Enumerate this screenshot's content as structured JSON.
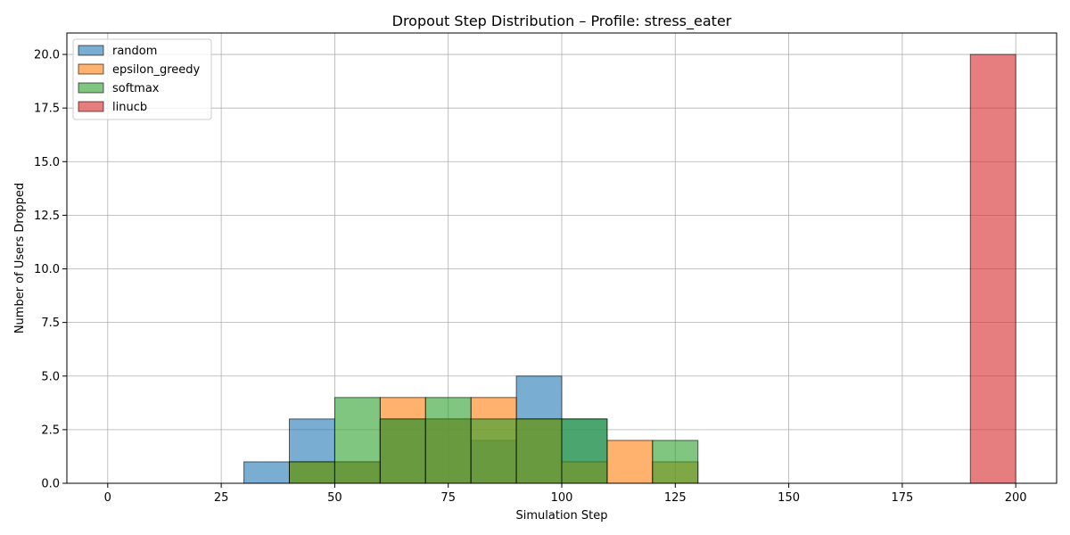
{
  "chart_data": {
    "type": "bar",
    "title": "Dropout Step Distribution – Profile: stress_eater",
    "xlabel": "Simulation Step",
    "ylabel": "Number of Users Dropped",
    "xlim": [
      -9,
      209
    ],
    "ylim": [
      0,
      21
    ],
    "xticks": [
      "0",
      "25",
      "50",
      "75",
      "100",
      "125",
      "150",
      "175",
      "200"
    ],
    "yticks": [
      "0.0",
      "2.5",
      "5.0",
      "7.5",
      "10.0",
      "12.5",
      "15.0",
      "17.5",
      "20.0"
    ],
    "bin_edges": [
      0,
      10,
      20,
      30,
      40,
      50,
      60,
      70,
      80,
      90,
      100,
      110,
      120,
      130,
      140,
      150,
      160,
      170,
      180,
      190,
      200
    ],
    "grid": true,
    "legend_position": "top-left",
    "series": [
      {
        "name": "random",
        "color": "#1f77b4",
        "values": [
          0,
          0,
          0,
          1,
          3,
          1,
          3,
          3,
          2,
          5,
          3,
          0,
          0,
          0,
          0,
          0,
          0,
          0,
          0,
          0
        ]
      },
      {
        "name": "epsilon_greedy",
        "color": "#ff7f0e",
        "values": [
          0,
          0,
          0,
          0,
          1,
          1,
          4,
          3,
          4,
          3,
          1,
          2,
          1,
          0,
          0,
          0,
          0,
          0,
          0,
          0
        ]
      },
      {
        "name": "softmax",
        "color": "#2ca02c",
        "values": [
          0,
          0,
          0,
          0,
          1,
          4,
          3,
          4,
          3,
          3,
          3,
          0,
          2,
          0,
          0,
          0,
          0,
          0,
          0,
          0
        ]
      },
      {
        "name": "linucb",
        "color": "#d62728",
        "values": [
          0,
          0,
          0,
          0,
          0,
          0,
          0,
          0,
          0,
          0,
          0,
          0,
          0,
          0,
          0,
          0,
          0,
          0,
          0,
          20
        ]
      }
    ]
  }
}
